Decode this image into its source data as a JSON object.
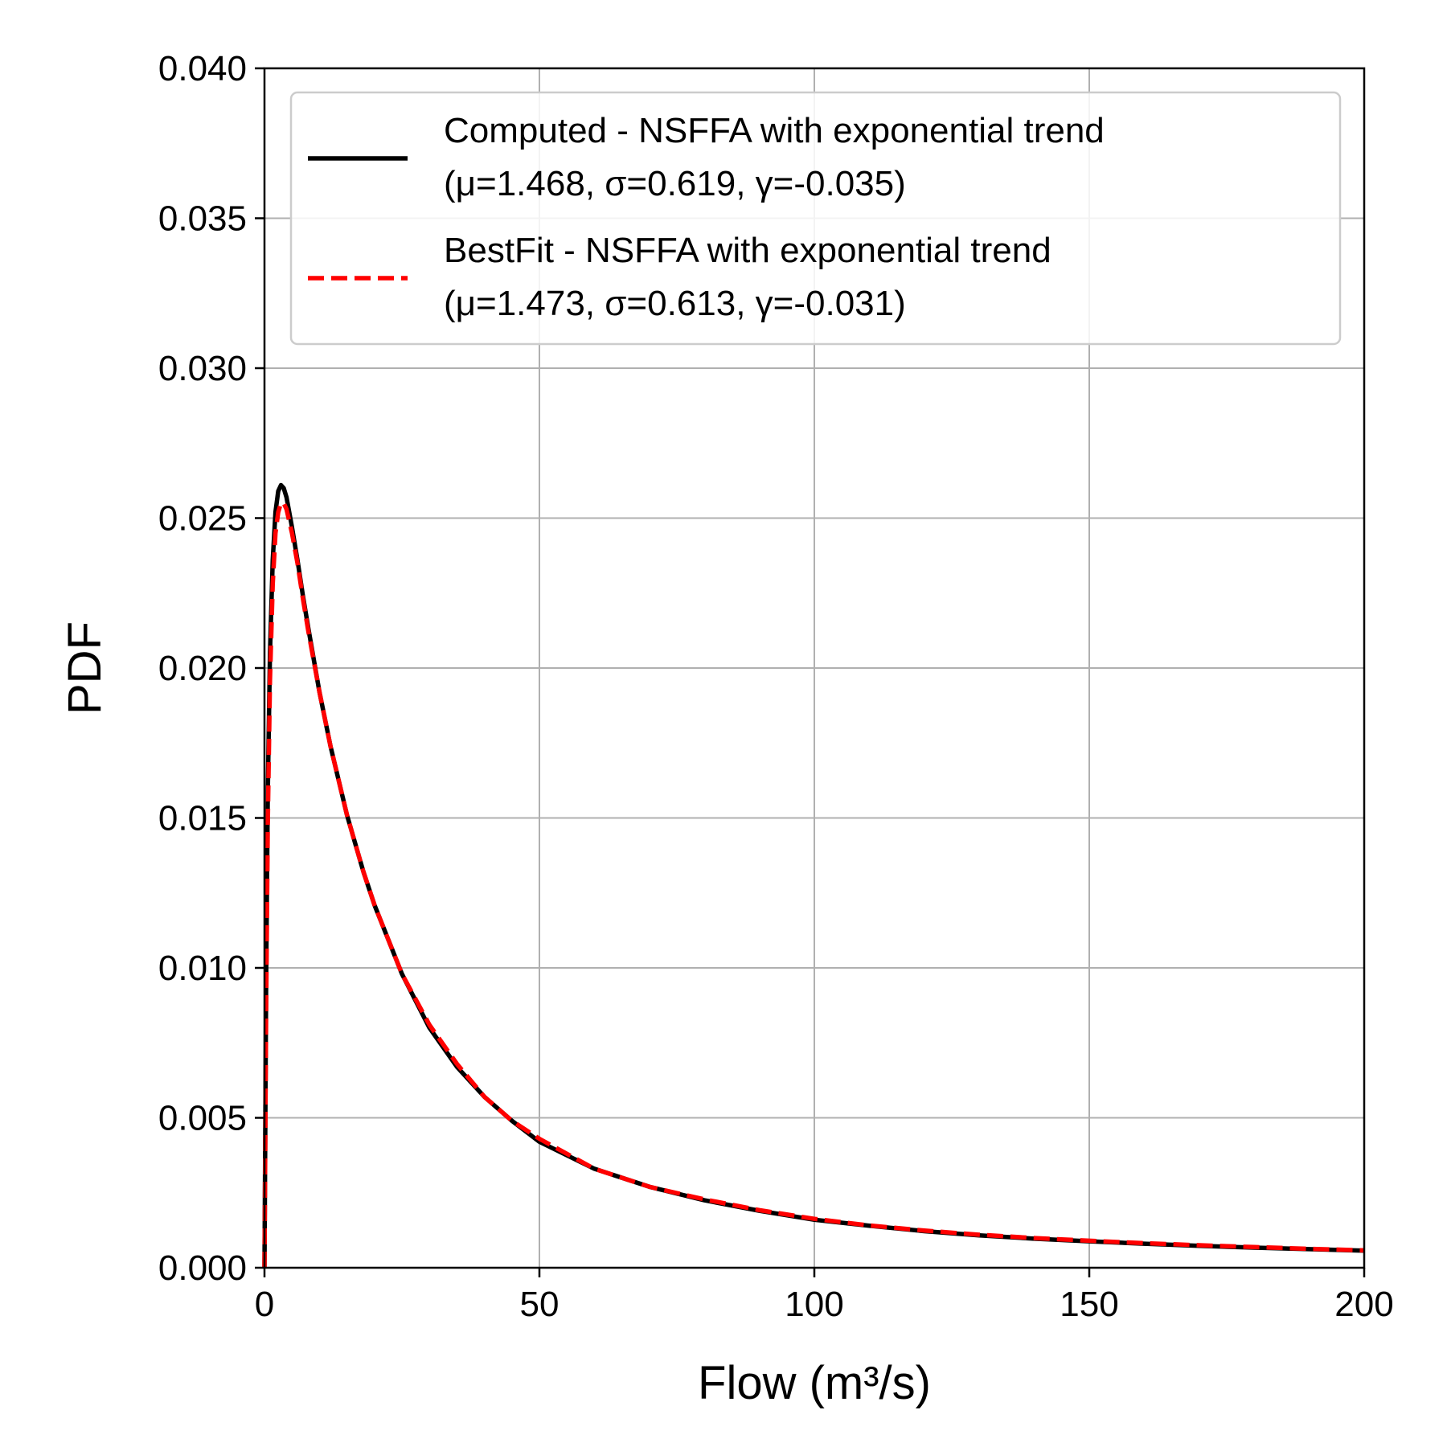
{
  "chart_data": {
    "type": "line",
    "title": "",
    "xlabel": "Flow (m³/s)",
    "ylabel": "PDF",
    "xlim": [
      0,
      200
    ],
    "ylim": [
      0,
      0.04
    ],
    "xticks": [
      0,
      50,
      100,
      150,
      200
    ],
    "xtick_labels": [
      "0",
      "50",
      "100",
      "150",
      "200"
    ],
    "yticks": [
      0,
      0.005,
      0.01,
      0.015,
      0.02,
      0.025,
      0.03,
      0.035,
      0.04
    ],
    "ytick_labels": [
      "0.000",
      "0.005",
      "0.010",
      "0.015",
      "0.020",
      "0.025",
      "0.030",
      "0.035",
      "0.040"
    ],
    "grid": true,
    "legend_position": "top-right",
    "series": [
      {
        "name_line1": "Computed - NSFFA with exponential trend",
        "name_line2": "(μ=1.468, σ=0.619, γ=-0.035)",
        "color": "#000000",
        "style": "solid",
        "x": [
          0,
          0.3,
          0.6,
          1,
          1.5,
          2,
          2.5,
          3,
          3.5,
          4,
          4.5,
          5,
          6,
          7,
          8,
          10,
          12,
          15,
          18,
          20,
          25,
          30,
          35,
          40,
          45,
          50,
          60,
          70,
          80,
          90,
          100,
          110,
          120,
          130,
          140,
          150,
          160,
          170,
          180,
          190,
          200
        ],
        "y": [
          0,
          0.0095,
          0.0158,
          0.0205,
          0.0236,
          0.0252,
          0.0259,
          0.0261,
          0.026,
          0.0257,
          0.0252,
          0.0247,
          0.0236,
          0.0224,
          0.0213,
          0.0192,
          0.0174,
          0.0151,
          0.0132,
          0.0121,
          0.0098,
          0.008,
          0.0067,
          0.0057,
          0.0049,
          0.0042,
          0.0033,
          0.0027,
          0.00225,
          0.0019,
          0.0016,
          0.0014,
          0.00122,
          0.00108,
          0.00097,
          0.00088,
          0.0008,
          0.00073,
          0.00067,
          0.00062,
          0.00057
        ]
      },
      {
        "name_line1": "BestFit - NSFFA with exponential trend",
        "name_line2": "(μ=1.473, σ=0.613, γ=-0.031)",
        "color": "#ff0000",
        "style": "dashed",
        "x": [
          0,
          0.3,
          0.6,
          1,
          1.5,
          2,
          2.5,
          3,
          3.5,
          4,
          4.5,
          5,
          6,
          7,
          8,
          10,
          12,
          15,
          18,
          20,
          25,
          30,
          35,
          40,
          45,
          50,
          60,
          70,
          80,
          90,
          100,
          110,
          120,
          130,
          140,
          150,
          160,
          170,
          180,
          190,
          200
        ],
        "y": [
          0,
          0.0085,
          0.0148,
          0.0196,
          0.0228,
          0.0245,
          0.0252,
          0.0255,
          0.0255,
          0.0253,
          0.0249,
          0.0245,
          0.0235,
          0.0223,
          0.0212,
          0.0192,
          0.0174,
          0.0151,
          0.0132,
          0.0121,
          0.0098,
          0.0081,
          0.0068,
          0.0057,
          0.0049,
          0.0043,
          0.0033,
          0.0027,
          0.00228,
          0.00192,
          0.00163,
          0.00141,
          0.00124,
          0.0011,
          0.00099,
          0.0009,
          0.00082,
          0.00075,
          0.00069,
          0.00063,
          0.00058
        ]
      }
    ]
  }
}
